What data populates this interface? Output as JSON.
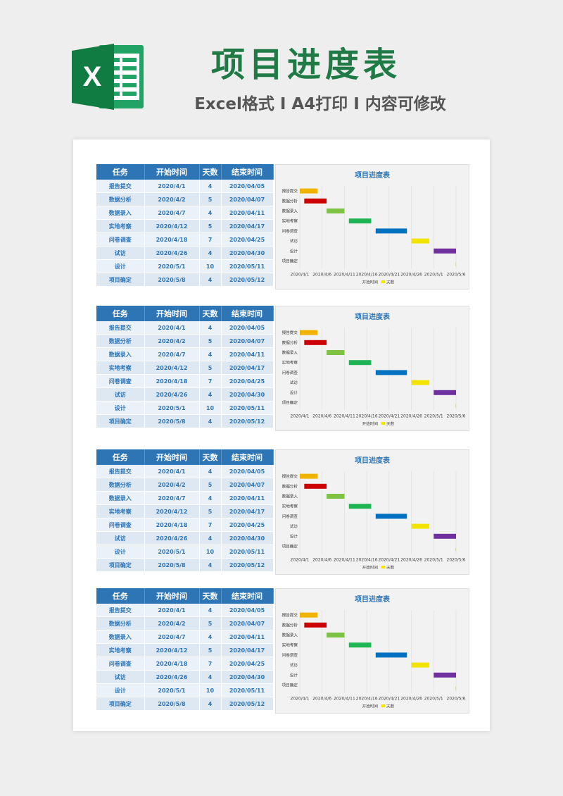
{
  "header": {
    "title": "项目进度表",
    "subtitle": "Excel格式 I A4打印 I 内容可修改",
    "logo_icon": "excel-logo-icon"
  },
  "table": {
    "headers": [
      "任务",
      "开始时间",
      "天数",
      "结束时间"
    ],
    "rows": [
      [
        "报告提交",
        "2020/4/1",
        "4",
        "2020/04/05"
      ],
      [
        "数据分析",
        "2020/4/2",
        "5",
        "2020/04/07"
      ],
      [
        "数据录入",
        "2020/4/7",
        "4",
        "2020/04/11"
      ],
      [
        "实地考察",
        "2020/4/12",
        "5",
        "2020/04/17"
      ],
      [
        "问卷调查",
        "2020/4/18",
        "7",
        "2020/04/25"
      ],
      [
        "试访",
        "2020/4/26",
        "4",
        "2020/04/30"
      ],
      [
        "设计",
        "2020/5/1",
        "10",
        "2020/05/11"
      ],
      [
        "项目确定",
        "2020/5/8",
        "4",
        "2020/05/12"
      ]
    ]
  },
  "colors": {
    "accent": "#2e75b6",
    "brand_green": "#1f7a45",
    "bars": [
      "#f0b400",
      "#cc0000",
      "#7dc242",
      "#1fb555",
      "#0070c0",
      "#f2e400",
      "#7030a0",
      "#f2e400"
    ]
  },
  "chart_data": [
    {
      "type": "bar",
      "orientation": "horizontal-gantt",
      "title": "项目进度表",
      "categories": [
        "报告提交",
        "数据分析",
        "数据录入",
        "实地考察",
        "问卷调查",
        "试访",
        "设计",
        "项目确定"
      ],
      "series": [
        {
          "name": "开始时间",
          "values": [
            "2020-04-01",
            "2020-04-02",
            "2020-04-07",
            "2020-04-12",
            "2020-04-18",
            "2020-04-26",
            "2020-05-01",
            "2020-05-08"
          ],
          "visible": false
        },
        {
          "name": "天数",
          "values": [
            4,
            5,
            4,
            5,
            7,
            4,
            10,
            4
          ]
        }
      ],
      "x_tick_labels": [
        "2020/4/1",
        "2020/4/6",
        "2020/4/11",
        "2020/4/16",
        "2020/4/21",
        "2020/4/26",
        "2020/5/1",
        "2020/5/6"
      ],
      "xlim": [
        "2020-04-01",
        "2020-05-06"
      ],
      "legend": [
        "开始时间",
        "天数"
      ],
      "legend_position": "bottom",
      "grid": "vertical"
    },
    {
      "type": "bar",
      "orientation": "horizontal-gantt",
      "title": "项目进度表",
      "categories": [
        "报告提交",
        "数据分析",
        "数据录入",
        "实地考察",
        "问卷调查",
        "试访",
        "设计",
        "项目确定"
      ],
      "series": [
        {
          "name": "开始时间",
          "values": [
            "2020-04-01",
            "2020-04-02",
            "2020-04-07",
            "2020-04-12",
            "2020-04-18",
            "2020-04-26",
            "2020-05-01",
            "2020-05-08"
          ],
          "visible": false
        },
        {
          "name": "天数",
          "values": [
            4,
            5,
            4,
            5,
            7,
            4,
            10,
            4
          ]
        }
      ],
      "x_tick_labels": [
        "2020/4/1",
        "2020/4/6",
        "2020/4/11",
        "2020/4/16",
        "2020/4/21",
        "2020/4/26",
        "2020/5/1",
        "2020/5/6"
      ],
      "xlim": [
        "2020-04-01",
        "2020-05-06"
      ],
      "legend": [
        "开始时间",
        "天数"
      ],
      "legend_position": "bottom",
      "grid": "vertical"
    },
    {
      "type": "bar",
      "orientation": "horizontal-gantt",
      "title": "项目进度表",
      "categories": [
        "报告提交",
        "数据分析",
        "数据录入",
        "实地考察",
        "问卷调查",
        "试访",
        "设计",
        "项目确定"
      ],
      "series": [
        {
          "name": "开始时间",
          "values": [
            "2020-04-01",
            "2020-04-02",
            "2020-04-07",
            "2020-04-12",
            "2020-04-18",
            "2020-04-26",
            "2020-05-01",
            "2020-05-08"
          ],
          "visible": false
        },
        {
          "name": "天数",
          "values": [
            4,
            5,
            4,
            5,
            7,
            4,
            10,
            4
          ]
        }
      ],
      "x_tick_labels": [
        "2020/4/1",
        "2020/4/6",
        "2020/4/11",
        "2020/4/16",
        "2020/4/21",
        "2020/4/26",
        "2020/5/1",
        "2020/5/6"
      ],
      "xlim": [
        "2020-04-01",
        "2020-05-06"
      ],
      "legend": [
        "开始时间",
        "天数"
      ],
      "legend_position": "bottom",
      "grid": "vertical"
    },
    {
      "type": "bar",
      "orientation": "horizontal-gantt",
      "title": "项目进度表",
      "categories": [
        "报告提交",
        "数据分析",
        "数据录入",
        "实地考察",
        "问卷调查",
        "试访",
        "设计",
        "项目确定"
      ],
      "series": [
        {
          "name": "开始时间",
          "values": [
            "2020-04-01",
            "2020-04-02",
            "2020-04-07",
            "2020-04-12",
            "2020-04-18",
            "2020-04-26",
            "2020-05-01",
            "2020-05-08"
          ],
          "visible": false
        },
        {
          "name": "天数",
          "values": [
            4,
            5,
            4,
            5,
            7,
            4,
            10,
            4
          ]
        }
      ],
      "x_tick_labels": [
        "2020/4/1",
        "2020/4/6",
        "2020/4/11",
        "2020/4/16",
        "2020/4/21",
        "2020/4/26",
        "2020/5/1",
        "2020/5/6"
      ],
      "xlim": [
        "2020-04-01",
        "2020-05-06"
      ],
      "legend": [
        "开始时间",
        "天数"
      ],
      "legend_position": "bottom",
      "grid": "vertical"
    }
  ]
}
